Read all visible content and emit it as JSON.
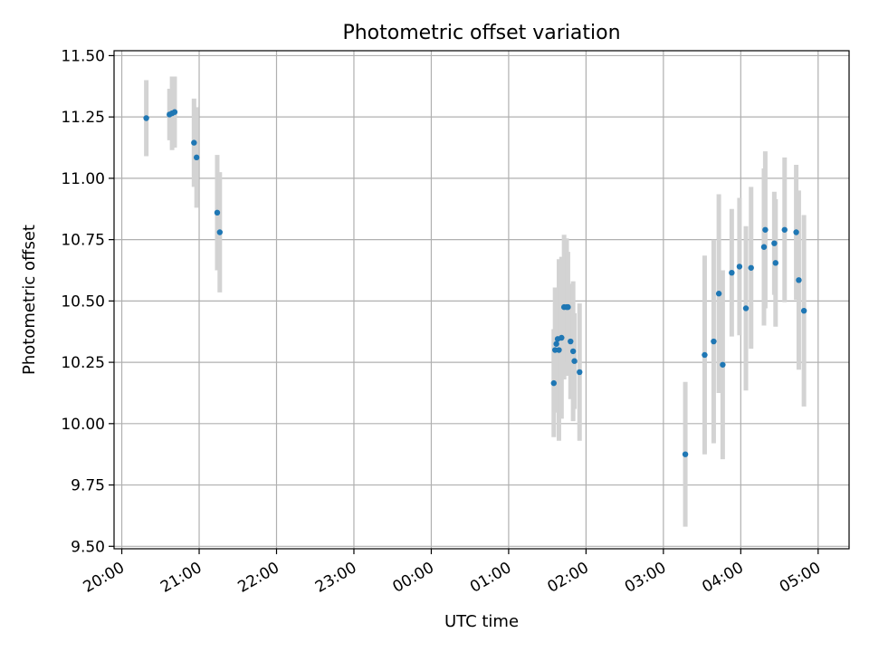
{
  "chart_data": {
    "type": "scatter",
    "title": "Photometric offset variation",
    "xlabel": "UTC time",
    "ylabel": "Photometric offset",
    "xticks": [
      "20:00",
      "21:00",
      "22:00",
      "23:00",
      "00:00",
      "01:00",
      "02:00",
      "03:00",
      "04:00",
      "05:00"
    ],
    "yticks": [
      "9.50",
      "9.75",
      "10.00",
      "10.25",
      "10.50",
      "10.75",
      "11.00",
      "11.25",
      "11.50"
    ],
    "xlim": [
      "19:54",
      "05:24"
    ],
    "ylim": [
      9.49,
      11.52
    ],
    "grid": true,
    "colors": {
      "points": "#1f77b4",
      "errorbars": "#d3d3d3"
    },
    "points": [
      {
        "x": "20:19",
        "y": 11.245,
        "err": 0.155
      },
      {
        "x": "20:37",
        "y": 11.26,
        "err": 0.105
      },
      {
        "x": "20:39",
        "y": 11.265,
        "err": 0.15
      },
      {
        "x": "20:41",
        "y": 11.27,
        "err": 0.145
      },
      {
        "x": "20:56",
        "y": 11.145,
        "err": 0.18
      },
      {
        "x": "20:58",
        "y": 11.085,
        "err": 0.205
      },
      {
        "x": "21:14",
        "y": 10.86,
        "err": 0.235
      },
      {
        "x": "21:16",
        "y": 10.78,
        "err": 0.245
      },
      {
        "x": "01:35",
        "y": 10.165,
        "err": 0.22
      },
      {
        "x": "01:36",
        "y": 10.3,
        "err": 0.255
      },
      {
        "x": "01:37",
        "y": 10.325,
        "err": 0.23
      },
      {
        "x": "01:38",
        "y": 10.345,
        "err": 0.17
      },
      {
        "x": "01:39",
        "y": 10.3,
        "err": 0.37
      },
      {
        "x": "01:41",
        "y": 10.35,
        "err": 0.33
      },
      {
        "x": "01:43",
        "y": 10.475,
        "err": 0.295
      },
      {
        "x": "01:45",
        "y": 10.475,
        "err": 0.28
      },
      {
        "x": "01:46",
        "y": 10.475,
        "err": 0.225
      },
      {
        "x": "01:48",
        "y": 10.335,
        "err": 0.235
      },
      {
        "x": "01:50",
        "y": 10.295,
        "err": 0.285
      },
      {
        "x": "01:51",
        "y": 10.255,
        "err": 0.195
      },
      {
        "x": "01:55",
        "y": 10.21,
        "err": 0.28
      },
      {
        "x": "03:17",
        "y": 9.875,
        "err": 0.295
      },
      {
        "x": "03:32",
        "y": 10.28,
        "err": 0.405
      },
      {
        "x": "03:39",
        "y": 10.335,
        "err": 0.415
      },
      {
        "x": "03:43",
        "y": 10.53,
        "err": 0.405
      },
      {
        "x": "03:46",
        "y": 10.24,
        "err": 0.385
      },
      {
        "x": "03:53",
        "y": 10.615,
        "err": 0.26
      },
      {
        "x": "03:59",
        "y": 10.64,
        "err": 0.28
      },
      {
        "x": "04:04",
        "y": 10.47,
        "err": 0.335
      },
      {
        "x": "04:08",
        "y": 10.635,
        "err": 0.33
      },
      {
        "x": "04:18",
        "y": 10.72,
        "err": 0.32
      },
      {
        "x": "04:19",
        "y": 10.79,
        "err": 0.32
      },
      {
        "x": "04:26",
        "y": 10.735,
        "err": 0.21
      },
      {
        "x": "04:27",
        "y": 10.655,
        "err": 0.26
      },
      {
        "x": "04:34",
        "y": 10.79,
        "err": 0.295
      },
      {
        "x": "04:43",
        "y": 10.78,
        "err": 0.275
      },
      {
        "x": "04:45",
        "y": 10.585,
        "err": 0.365
      },
      {
        "x": "04:49",
        "y": 10.46,
        "err": 0.39
      }
    ]
  }
}
